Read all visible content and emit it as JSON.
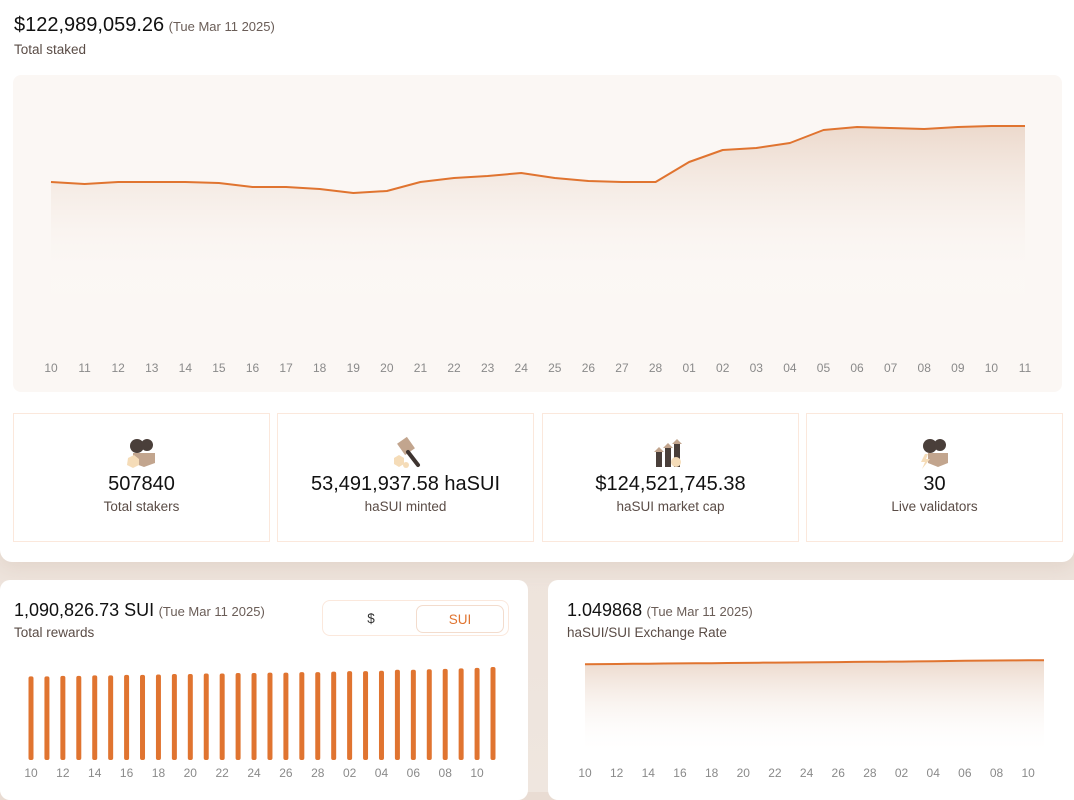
{
  "colors": {
    "accent": "#e07430",
    "card_bg": "#fbf7f4",
    "border": "#fbe8dc"
  },
  "total_staked": {
    "value": "$122,989,059.26",
    "date": "(Tue Mar 11 2025)",
    "label": "Total staked"
  },
  "stats": [
    {
      "icon": "stakers-icon",
      "value": "507840",
      "label": "Total stakers"
    },
    {
      "icon": "mint-hammer-icon",
      "value": "53,491,937.58 haSUI",
      "label": "haSUI minted"
    },
    {
      "icon": "market-cap-icon",
      "value": "$124,521,745.38",
      "label": "haSUI market cap"
    },
    {
      "icon": "validators-icon",
      "value": "30",
      "label": "Live validators"
    }
  ],
  "rewards": {
    "value": "1,090,826.73 SUI",
    "date": "(Tue Mar 11 2025)",
    "label": "Total rewards",
    "toggle": {
      "options": [
        "$",
        "SUI"
      ],
      "selected": "SUI"
    }
  },
  "exchange": {
    "value": "1.049868",
    "date": "(Tue Mar 11 2025)",
    "label": "haSUI/SUI Exchange Rate"
  },
  "chart_data": [
    {
      "type": "area",
      "title": "Total staked",
      "ylabel": "",
      "xlabel": "",
      "grid": false,
      "ylim": [
        16,
        136
      ],
      "unit": "USD millions (estimated)",
      "x": [
        "10",
        "11",
        "12",
        "13",
        "14",
        "15",
        "16",
        "17",
        "18",
        "19",
        "20",
        "21",
        "22",
        "23",
        "24",
        "25",
        "26",
        "27",
        "28",
        "01",
        "02",
        "03",
        "04",
        "05",
        "06",
        "07",
        "08",
        "09",
        "10",
        "11"
      ],
      "values": [
        95.0,
        94.0,
        95.0,
        95.0,
        95.0,
        94.5,
        92.5,
        92.5,
        91.5,
        89.5,
        90.5,
        95.0,
        97.0,
        98.0,
        99.5,
        97.0,
        95.5,
        95.0,
        95.0,
        105.0,
        111.0,
        112.0,
        114.5,
        121.0,
        122.5,
        122.0,
        121.5,
        122.5,
        123.0,
        123.0
      ]
    },
    {
      "type": "bar",
      "title": "Total rewards",
      "grid": false,
      "ylim": [
        0,
        1
      ],
      "unit": "relative to max (estimated)",
      "x": [
        "10",
        "11",
        "12",
        "13",
        "14",
        "15",
        "16",
        "17",
        "18",
        "19",
        "20",
        "21",
        "22",
        "23",
        "24",
        "25",
        "26",
        "27",
        "28",
        "01",
        "02",
        "03",
        "04",
        "05",
        "06",
        "07",
        "08",
        "09",
        "10",
        "11"
      ],
      "tick_labels": [
        "10",
        "12",
        "14",
        "16",
        "18",
        "20",
        "22",
        "24",
        "26",
        "28",
        "02",
        "04",
        "06",
        "08",
        "10"
      ],
      "values": [
        0.89,
        0.89,
        0.895,
        0.895,
        0.9,
        0.9,
        0.905,
        0.905,
        0.91,
        0.915,
        0.915,
        0.92,
        0.92,
        0.925,
        0.925,
        0.93,
        0.93,
        0.935,
        0.935,
        0.94,
        0.945,
        0.945,
        0.95,
        0.96,
        0.96,
        0.965,
        0.97,
        0.975,
        0.98,
        0.99
      ]
    },
    {
      "type": "area",
      "title": "haSUI/SUI Exchange Rate",
      "grid": false,
      "ylim": [
        0.86,
        1.056
      ],
      "x": [
        "10",
        "11",
        "12",
        "13",
        "14",
        "15",
        "16",
        "17",
        "18",
        "19",
        "20",
        "21",
        "22",
        "23",
        "24",
        "25",
        "26",
        "27",
        "28",
        "01",
        "02",
        "03",
        "04",
        "05",
        "06",
        "07",
        "08",
        "09",
        "10",
        "11"
      ],
      "tick_labels": [
        "10",
        "12",
        "14",
        "16",
        "18",
        "20",
        "22",
        "24",
        "26",
        "28",
        "02",
        "04",
        "06",
        "08",
        "10"
      ],
      "values": [
        1.0425,
        1.0428,
        1.043,
        1.0433,
        1.0435,
        1.0438,
        1.044,
        1.0443,
        1.0445,
        1.0448,
        1.045,
        1.0453,
        1.0455,
        1.0458,
        1.046,
        1.0463,
        1.0465,
        1.0468,
        1.047,
        1.0473,
        1.0475,
        1.0478,
        1.048,
        1.0485,
        1.049,
        1.0493,
        1.0495,
        1.0497,
        1.0498,
        1.049868
      ]
    }
  ]
}
